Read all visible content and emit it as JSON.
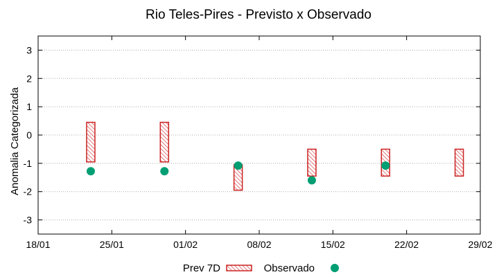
{
  "chart_data": {
    "type": "scatter",
    "title": "Rio Teles-Pires - Previsto x Observado",
    "xlabel": "",
    "ylabel": "Anomalia Categorizada",
    "ylim": [
      -3.5,
      3.5
    ],
    "yticks": [
      -3,
      -2,
      -1,
      0,
      1,
      2,
      3
    ],
    "xlim_days": [
      0,
      42
    ],
    "xticks": [
      {
        "day": 0,
        "label": "18/01"
      },
      {
        "day": 7,
        "label": "25/01"
      },
      {
        "day": 14,
        "label": "01/02"
      },
      {
        "day": 21,
        "label": "08/02"
      },
      {
        "day": 28,
        "label": "15/02"
      },
      {
        "day": 35,
        "label": "22/02"
      },
      {
        "day": 42,
        "label": "29/02"
      }
    ],
    "grid": true,
    "legend_position": "bottom",
    "series": [
      {
        "name": "Prev 7D",
        "kind": "range",
        "color": "#cc2222",
        "points": [
          {
            "day": 5,
            "low": -0.95,
            "high": 0.45
          },
          {
            "day": 12,
            "low": -0.95,
            "high": 0.45
          },
          {
            "day": 19,
            "low": -1.95,
            "high": -1.05
          },
          {
            "day": 26,
            "low": -1.45,
            "high": -0.5
          },
          {
            "day": 33,
            "low": -1.45,
            "high": -0.5
          },
          {
            "day": 40,
            "low": -1.45,
            "high": -0.5
          }
        ]
      },
      {
        "name": "Observado",
        "kind": "point",
        "color": "#009e73",
        "points": [
          {
            "day": 5,
            "value": -1.28
          },
          {
            "day": 12,
            "value": -1.28
          },
          {
            "day": 19,
            "value": -1.08
          },
          {
            "day": 26,
            "value": -1.6
          },
          {
            "day": 33,
            "value": -1.08
          }
        ]
      }
    ]
  }
}
